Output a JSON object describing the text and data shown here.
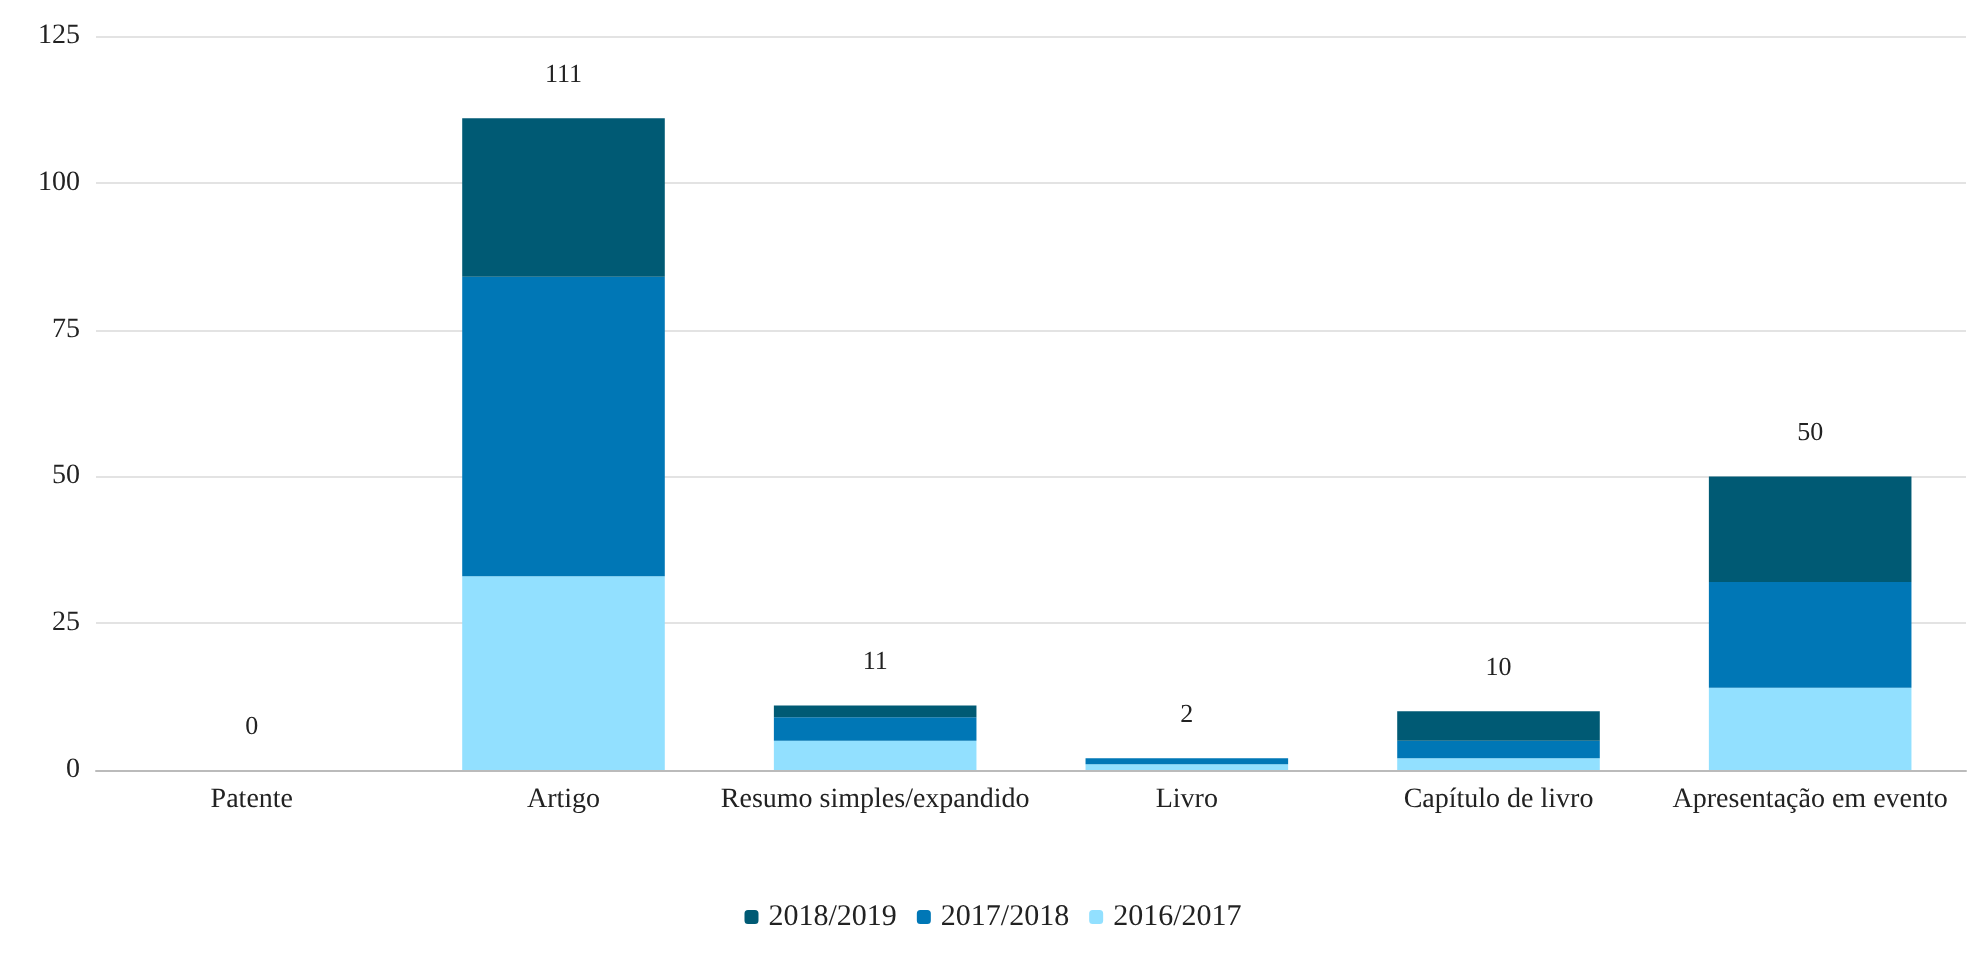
{
  "chart_data": {
    "type": "bar",
    "stacked": true,
    "categories": [
      "Patente",
      "Artigo",
      "Resumo simples/expandido",
      "Livro",
      "Capítulo de livro",
      "Apresentação em evento"
    ],
    "series": [
      {
        "name": "2016/2017",
        "color": "#92e0ff",
        "values": [
          0,
          33,
          5,
          1,
          2,
          14
        ]
      },
      {
        "name": "2017/2018",
        "color": "#0077b6",
        "values": [
          0,
          51,
          4,
          1,
          3,
          18
        ]
      },
      {
        "name": "2018/2019",
        "color": "#005a74",
        "values": [
          0,
          27,
          2,
          0,
          5,
          18
        ]
      }
    ],
    "totals": [
      "0",
      "111",
      "11",
      "2",
      "10",
      "50"
    ],
    "ylim": [
      0,
      125
    ],
    "yticks": [
      0,
      25,
      50,
      75,
      100,
      125
    ],
    "grid": "y",
    "legend": "bottom"
  }
}
